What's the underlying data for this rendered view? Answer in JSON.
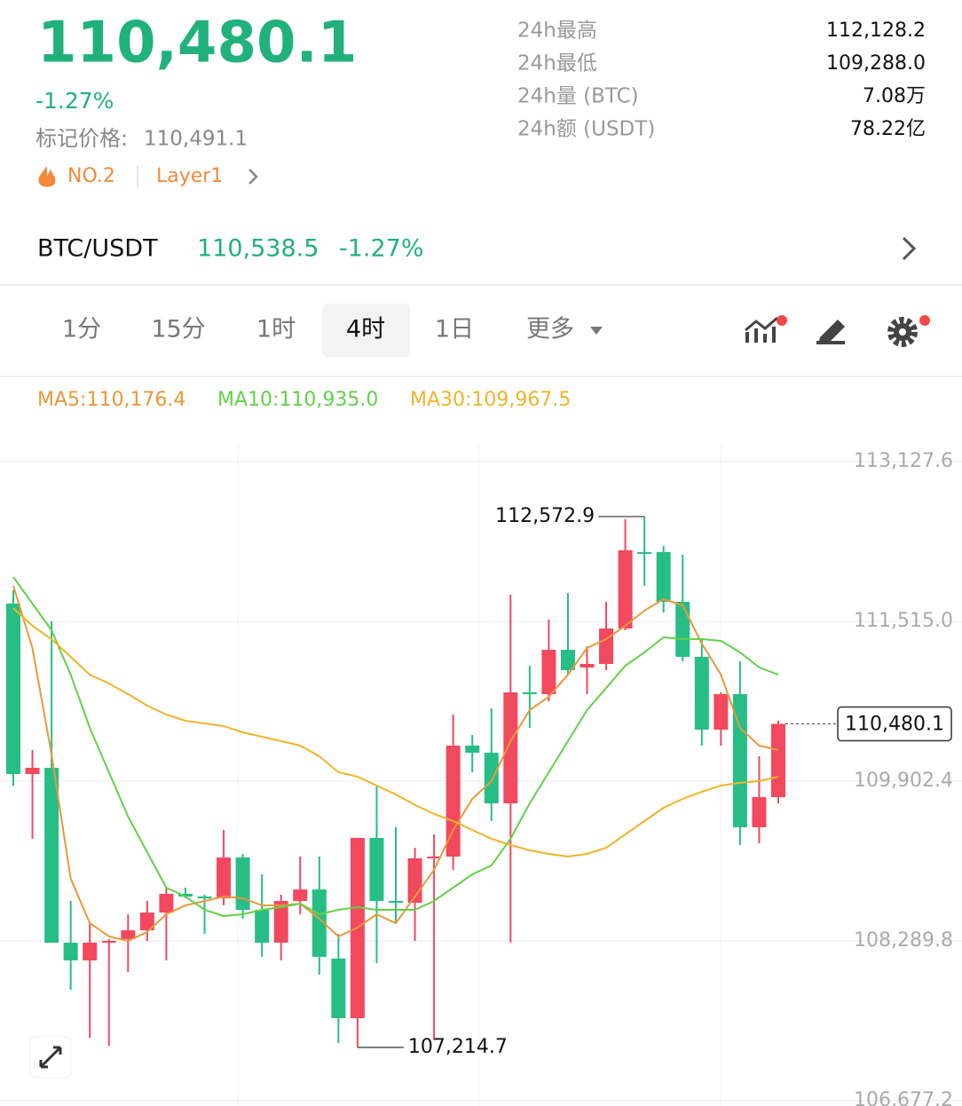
{
  "header": {
    "price": "110,480.1",
    "change": "-1.27%",
    "mark_label": "标记价格:",
    "mark_price": "110,491.1",
    "rank": "NO.2",
    "tag": "Layer1"
  },
  "stats": [
    [
      "24h最高",
      "112,128.2"
    ],
    [
      "24h最低",
      "109,288.0"
    ],
    [
      "24h量 (BTC)",
      "7.08万"
    ],
    [
      "24h额 (USDT)",
      "78.22亿"
    ]
  ],
  "pair": {
    "symbol": "BTC/USDT",
    "price": "110,538.5",
    "change": "-1.27%"
  },
  "tabs": [
    "1分",
    "15分",
    "1时",
    "4时",
    "1日",
    "更多"
  ],
  "chart_data": {
    "type": "candlestick",
    "up_color": "#f2495e",
    "down_color": "#27be86",
    "categories": [
      null,
      null,
      null,
      null,
      null,
      null,
      null,
      null,
      null,
      null,
      null,
      null,
      null,
      null,
      null,
      null,
      null,
      null,
      null,
      null,
      null,
      null,
      null,
      null,
      null,
      null,
      null,
      null,
      null,
      null,
      null,
      null,
      null,
      null,
      null,
      null,
      null,
      null,
      null,
      null,
      null
    ],
    "open": [
      111694,
      109974,
      110037,
      108272,
      108093,
      108272,
      108308,
      108397,
      108576,
      108765,
      108738,
      108720,
      109132,
      108603,
      108272,
      108693,
      108809,
      108111,
      107510,
      109329,
      108693,
      108675,
      109123,
      109141,
      110261,
      110189,
      109678,
      110798,
      110780,
      111228,
      111049,
      111085,
      111443,
      112214,
      112214,
      111712,
      111157,
      110422,
      110780,
      109437,
      109741
    ],
    "high": [
      111829,
      110216,
      111515,
      108693,
      108469,
      108308,
      108559,
      108693,
      108827,
      108827,
      108756,
      109410,
      109168,
      108962,
      108756,
      109141,
      109141,
      108361,
      109329,
      109849,
      109437,
      109230,
      109365,
      110574,
      110368,
      110637,
      111784,
      111067,
      111533,
      111802,
      111264,
      111712,
      112545,
      112572.9,
      112277,
      112187,
      111336,
      110798,
      111112,
      110153,
      110512
    ],
    "low": [
      109858,
      109320,
      108272,
      107797,
      107310,
      107230,
      107976,
      108290,
      108093,
      108720,
      108361,
      108648,
      108514,
      108129,
      108093,
      108559,
      107949,
      107260,
      107214.7,
      108066,
      108469,
      108290,
      107286,
      109007,
      109992,
      109499,
      108272,
      110440,
      110709,
      110977,
      110780,
      111022,
      111425,
      111873,
      111605,
      111112,
      110261,
      110261,
      109257,
      109275,
      109678
    ],
    "close": [
      109974,
      110037,
      108272,
      108093,
      108272,
      108290,
      108397,
      108576,
      108765,
      108738,
      108720,
      109132,
      108603,
      108272,
      108693,
      108809,
      108129,
      107510,
      109329,
      108693,
      108675,
      109123,
      109141,
      110261,
      110189,
      109678,
      110798,
      110780,
      111228,
      111022,
      111085,
      111443,
      112232,
      112196,
      111712,
      111157,
      110422,
      110780,
      109437,
      109741,
      110480.1
    ],
    "ma": [
      {
        "name": "MA5:",
        "color": "#ea983a",
        "current": {
          "value": 110176.4,
          "label": "110,176.4"
        },
        "values": [
          111873,
          111246,
          110171,
          108917,
          108469,
          108335,
          108290,
          108379,
          108559,
          108648,
          108693,
          108738,
          108720,
          108648,
          108648,
          108666,
          108514,
          108335,
          108424,
          108559,
          108469,
          108738,
          109007,
          109410,
          109723,
          109902,
          110306,
          110619,
          110754,
          110977,
          111246,
          111336,
          111470,
          111623,
          111739,
          111676,
          111291,
          110977,
          110440,
          110261,
          110216
        ]
      },
      {
        "name": "MA10:",
        "color": "#62d149",
        "current": {
          "value": 110935.0,
          "label": "110,935.0"
        },
        "values": [
          111963,
          111694,
          111425,
          110977,
          110440,
          109992,
          109544,
          109186,
          108827,
          108738,
          108603,
          108541,
          108559,
          108603,
          108630,
          108666,
          108559,
          108603,
          108630,
          108603,
          108603,
          108603,
          108693,
          108827,
          108962,
          109051,
          109320,
          109678,
          109992,
          110306,
          110619,
          110843,
          111067,
          111201,
          111354,
          111336,
          111336,
          111318,
          111201,
          111049,
          110977
        ]
      },
      {
        "name": "MA30:",
        "color": "#efb42a",
        "current": {
          "value": 109967.5,
          "label": "109,967.5"
        },
        "values": [
          111649,
          111470,
          111336,
          111157,
          110977,
          110888,
          110780,
          110664,
          110574,
          110512,
          110485,
          110458,
          110395,
          110350,
          110306,
          110261,
          110153,
          109992,
          109947,
          109858,
          109768,
          109661,
          109571,
          109499,
          109410,
          109320,
          109257,
          109204,
          109168,
          109141,
          109168,
          109230,
          109365,
          109499,
          109634,
          109723,
          109795,
          109858,
          109885,
          109902,
          109947
        ]
      }
    ],
    "ylim": [
      106677.2,
      113127.6
    ],
    "yticks": [
      {
        "value": 113127.6,
        "label": "113,127.6"
      },
      {
        "value": 111515.0,
        "label": "111,515.0"
      },
      {
        "value": 109902.4,
        "label": "109,902.4"
      },
      {
        "value": 108289.8,
        "label": "108,289.8"
      },
      {
        "value": 106677.2,
        "label": "106,677.2"
      }
    ],
    "grid": true,
    "annotations": [
      {
        "value": 112572.9,
        "label": "112,572.9",
        "index": 33
      },
      {
        "value": 107214.7,
        "label": "107,214.7",
        "index": 18
      }
    ],
    "last_price": {
      "value": 110480.1,
      "label": "110,480.1"
    }
  }
}
